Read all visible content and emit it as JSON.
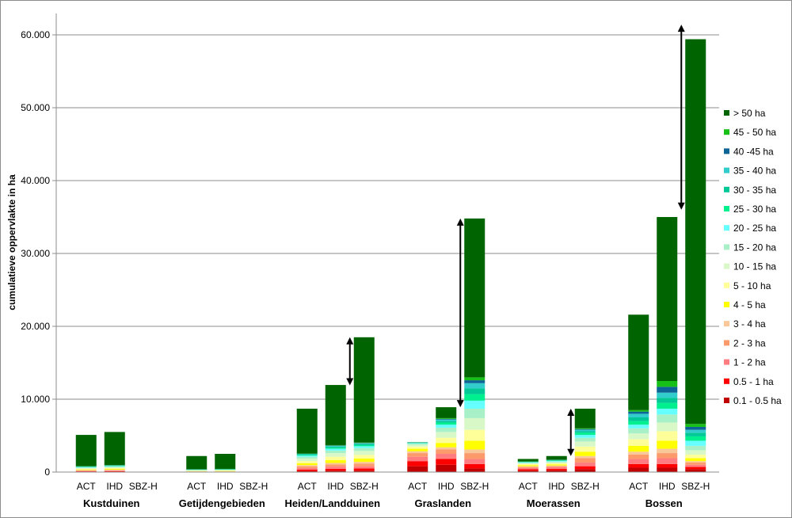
{
  "chart_data": {
    "type": "bar",
    "stacked": true,
    "ylabel": "cumulatieve oppervlakte in ha",
    "ylim": [
      0,
      65000
    ],
    "yticks": [
      0,
      10000,
      20000,
      30000,
      40000,
      50000,
      60000
    ],
    "ytick_labels": [
      "0",
      "10.000",
      "20.000",
      "30.000",
      "40.000",
      "50.000",
      "60.000"
    ],
    "grid": true,
    "legend_position": "right",
    "bar_labels": [
      "ACT",
      "IHD",
      "SBZ-H"
    ],
    "groups": [
      {
        "name": "Kustduinen",
        "bars": [
          {
            "label": "ACT",
            "total": 5100,
            "values": [
              40,
              60,
              50,
              60,
              70,
              80,
              90,
              100,
              70,
              50,
              40,
              30,
              30,
              20,
              30,
              4280
            ]
          },
          {
            "label": "IHD",
            "total": 5500,
            "values": [
              50,
              70,
              60,
              70,
              80,
              100,
              110,
              120,
              80,
              60,
              50,
              40,
              30,
              20,
              30,
              4530
            ]
          },
          {
            "label": "SBZ-H",
            "total": 0,
            "values": []
          }
        ]
      },
      {
        "name": "Getijdengebieden",
        "bars": [
          {
            "label": "ACT",
            "total": 2200,
            "values": [
              10,
              20,
              20,
              20,
              30,
              40,
              50,
              60,
              40,
              30,
              20,
              20,
              20,
              10,
              10,
              1800
            ]
          },
          {
            "label": "IHD",
            "total": 2500,
            "values": [
              10,
              20,
              20,
              20,
              30,
              50,
              60,
              60,
              40,
              40,
              30,
              20,
              20,
              10,
              10,
              2060
            ]
          },
          {
            "label": "SBZ-H",
            "total": 0,
            "values": []
          }
        ]
      },
      {
        "name": "Heiden/Landduinen",
        "bars": [
          {
            "label": "ACT",
            "total": 8700,
            "values": [
              150,
              200,
              200,
              250,
              150,
              250,
              300,
              350,
              250,
              150,
              100,
              100,
              50,
              30,
              20,
              6150
            ]
          },
          {
            "label": "IHD",
            "total": 11900,
            "values": [
              200,
              250,
              300,
              300,
              200,
              400,
              450,
              500,
              350,
              250,
              150,
              150,
              100,
              50,
              50,
              8250
            ]
          },
          {
            "label": "SBZ-H",
            "total": 18500,
            "values": [
              200,
              300,
              300,
              350,
              250,
              450,
              500,
              550,
              400,
              250,
              150,
              150,
              100,
              50,
              50,
              14450
            ]
          }
        ]
      },
      {
        "name": "Graslanden",
        "bars": [
          {
            "label": "ACT",
            "total": 4100,
            "values": [
              800,
              700,
              600,
              500,
              250,
              350,
              300,
              250,
              150,
              60,
              40,
              30,
              20,
              20,
              30,
              0
            ]
          },
          {
            "label": "IHD",
            "total": 8900,
            "values": [
              1000,
              800,
              700,
              600,
              300,
              600,
              700,
              800,
              600,
              400,
              300,
              200,
              200,
              100,
              100,
              1500
            ]
          },
          {
            "label": "SBZ-H",
            "total": 34800,
            "values": [
              500,
              600,
              700,
              800,
              500,
              1200,
              1500,
              1600,
              1300,
              1100,
              900,
              800,
              700,
              400,
              400,
              21800
            ]
          }
        ]
      },
      {
        "name": "Moerassen",
        "bars": [
          {
            "label": "ACT",
            "total": 1800,
            "values": [
              200,
              200,
              150,
              150,
              100,
              150,
              150,
              100,
              80,
              60,
              40,
              30,
              20,
              20,
              20,
              330
            ]
          },
          {
            "label": "IHD",
            "total": 2200,
            "values": [
              250,
              200,
              200,
              150,
              100,
              150,
              150,
              150,
              100,
              80,
              60,
              40,
              30,
              20,
              20,
              500
            ]
          },
          {
            "label": "SBZ-H",
            "total": 8700,
            "values": [
              400,
              400,
              500,
              600,
              300,
              600,
              700,
              700,
              500,
              400,
              300,
              200,
              200,
              100,
              100,
              2700
            ]
          }
        ]
      },
      {
        "name": "Bossen",
        "bars": [
          {
            "label": "ACT",
            "total": 21600,
            "values": [
              600,
              500,
              700,
              600,
              400,
              800,
              900,
              800,
              700,
              500,
              500,
              500,
              500,
              300,
              200,
              13100
            ]
          },
          {
            "label": "IHD",
            "total": 36000,
            "values": [
              600,
              500,
              800,
              700,
              600,
              1100,
              1300,
              1200,
              1100,
              800,
              800,
              700,
              700,
              800,
              800,
              22500
            ]
          },
          {
            "label": "SBZ-H",
            "total": 61400,
            "values": [
              400,
              300,
              300,
              300,
              200,
              400,
              500,
              600,
              600,
              700,
              600,
              500,
              400,
              400,
              400,
              52800
            ]
          }
        ]
      }
    ],
    "series": [
      {
        "name": "0.1 - 0.5 ha",
        "color": "#c00000"
      },
      {
        "name": "0.5 - 1 ha",
        "color": "#ff0000"
      },
      {
        "name": "1 - 2 ha",
        "color": "#ff7c80"
      },
      {
        "name": "2 - 3 ha",
        "color": "#fc9a6c"
      },
      {
        "name": "3 - 4 ha",
        "color": "#fac898"
      },
      {
        "name": "4 - 5 ha",
        "color": "#ffff00"
      },
      {
        "name": "5 - 10 ha",
        "color": "#ffff99"
      },
      {
        "name": "10 - 15 ha",
        "color": "#d8f8c8"
      },
      {
        "name": "15 - 20 ha",
        "color": "#a8f0c8"
      },
      {
        "name": "20 - 25 ha",
        "color": "#66ffff"
      },
      {
        "name": "25 - 30 ha",
        "color": "#00f090"
      },
      {
        "name": "30 - 35 ha",
        "color": "#00c896"
      },
      {
        "name": "35 - 40 ha",
        "color": "#33cccc"
      },
      {
        "name": "40 -45 ha",
        "color": "#0d6496"
      },
      {
        "name": "45 - 50 ha",
        "color": "#16c016"
      },
      {
        "name": "> 50 ha",
        "color": "#006400"
      }
    ],
    "arrows": [
      {
        "group": "Heiden/Landduinen",
        "from": 11900,
        "to": 18500
      },
      {
        "group": "Graslanden",
        "from": 8900,
        "to": 34800
      },
      {
        "group": "Moerassen",
        "from": 2200,
        "to": 8700
      },
      {
        "group": "Bossen",
        "from": 36000,
        "to": 61400
      }
    ]
  }
}
